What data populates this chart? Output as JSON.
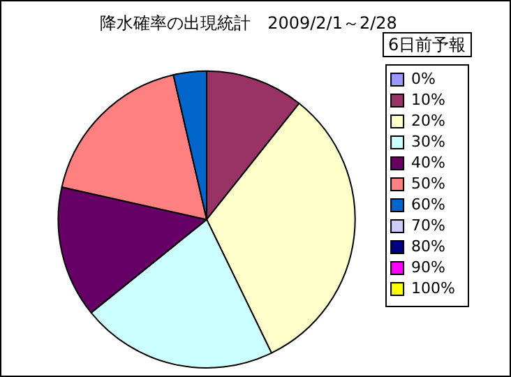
{
  "chart_data": {
    "type": "pie",
    "title": "降水確率の出現統計　2009/2/1～2/28",
    "legend_title": "6日前予報",
    "legend": "right",
    "categories": [
      "0%",
      "10%",
      "20%",
      "30%",
      "40%",
      "50%",
      "60%",
      "70%",
      "80%",
      "90%",
      "100%"
    ],
    "values": [
      0,
      10.7,
      32.1,
      21.4,
      14.3,
      17.9,
      3.6,
      0,
      0,
      0,
      0
    ],
    "colors": [
      "#9999ff",
      "#993366",
      "#ffffcc",
      "#ccffff",
      "#660066",
      "#ff8080",
      "#0066cc",
      "#ccccff",
      "#000080",
      "#ff00ff",
      "#ffff00"
    ]
  }
}
